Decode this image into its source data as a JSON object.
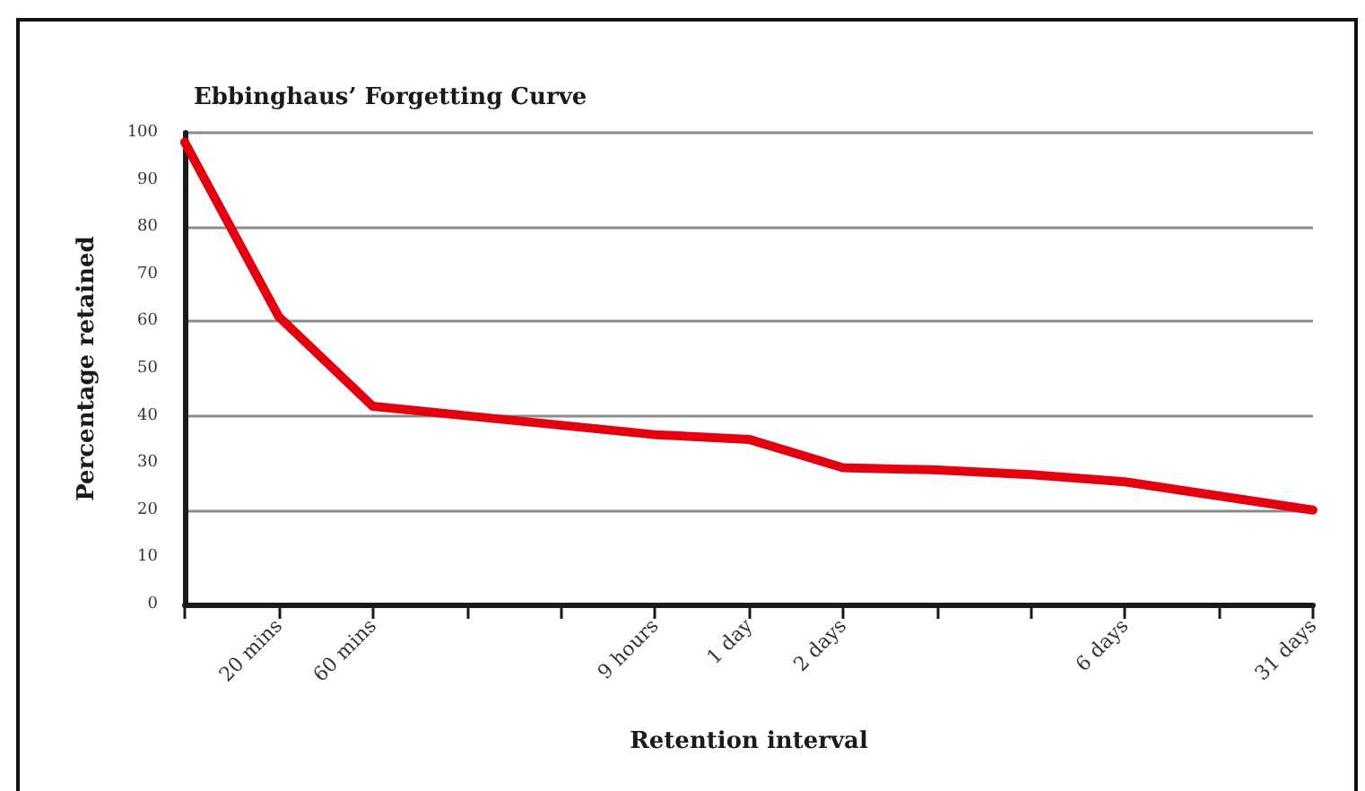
{
  "chart_data": {
    "type": "line",
    "title": "Ebbinghaus’ Forgetting Curve",
    "xlabel": "Retention interval",
    "ylabel": "Percentage retained",
    "categories": [
      null,
      "20 mins",
      "60 mins",
      null,
      null,
      "9 hours",
      "1 day",
      "2 days",
      null,
      null,
      "6 days",
      null,
      "31 days"
    ],
    "values": [
      98,
      61,
      42,
      40,
      38,
      36,
      35,
      29,
      28.5,
      27.5,
      26,
      23,
      20
    ],
    "color": "#e3000f",
    "ylim": [
      0,
      100
    ],
    "yticks": [
      0,
      10,
      20,
      30,
      40,
      50,
      60,
      70,
      80,
      90,
      100
    ],
    "grid": "y",
    "marker": "none",
    "line_style": "solid"
  }
}
